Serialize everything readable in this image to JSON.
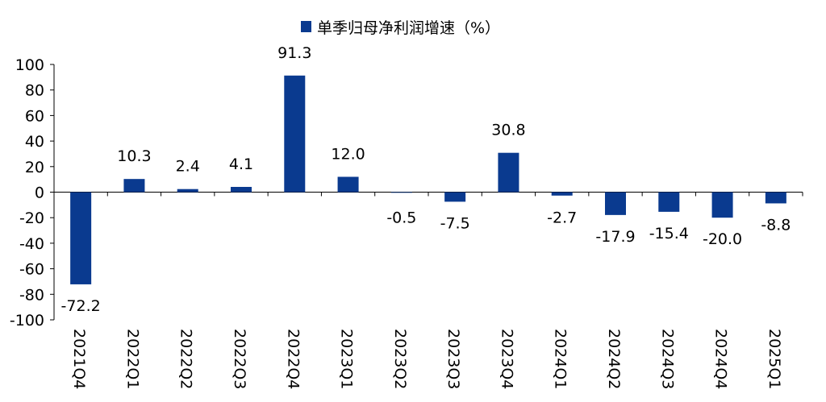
{
  "chart_data": {
    "type": "bar",
    "categories": [
      "2021Q4",
      "2022Q1",
      "2022Q2",
      "2022Q3",
      "2022Q4",
      "2023Q1",
      "2023Q2",
      "2023Q3",
      "2023Q4",
      "2024Q1",
      "2024Q2",
      "2024Q3",
      "2024Q4",
      "2025Q1"
    ],
    "series": [
      {
        "name": "单季归母净利润增速（%）",
        "values": [
          -72.2,
          10.3,
          2.4,
          4.1,
          91.3,
          12.0,
          -0.5,
          -7.5,
          30.8,
          -2.7,
          -17.9,
          -15.4,
          -20.0,
          -8.8
        ],
        "labels": [
          "-72.2",
          "10.3",
          "2.4",
          "4.1",
          "91.3",
          "12.0",
          "-0.5",
          "-7.5",
          "30.8",
          "-2.7",
          "-17.9",
          "-15.4",
          "-20.0",
          "-8.8"
        ]
      }
    ],
    "ylim": [
      -100,
      100
    ],
    "yticks": [
      100,
      80,
      60,
      40,
      20,
      0,
      -20,
      -40,
      -60,
      -80,
      -100
    ],
    "legend_position": "top-center",
    "grid": false,
    "bar_color": "#0A3A8F"
  }
}
